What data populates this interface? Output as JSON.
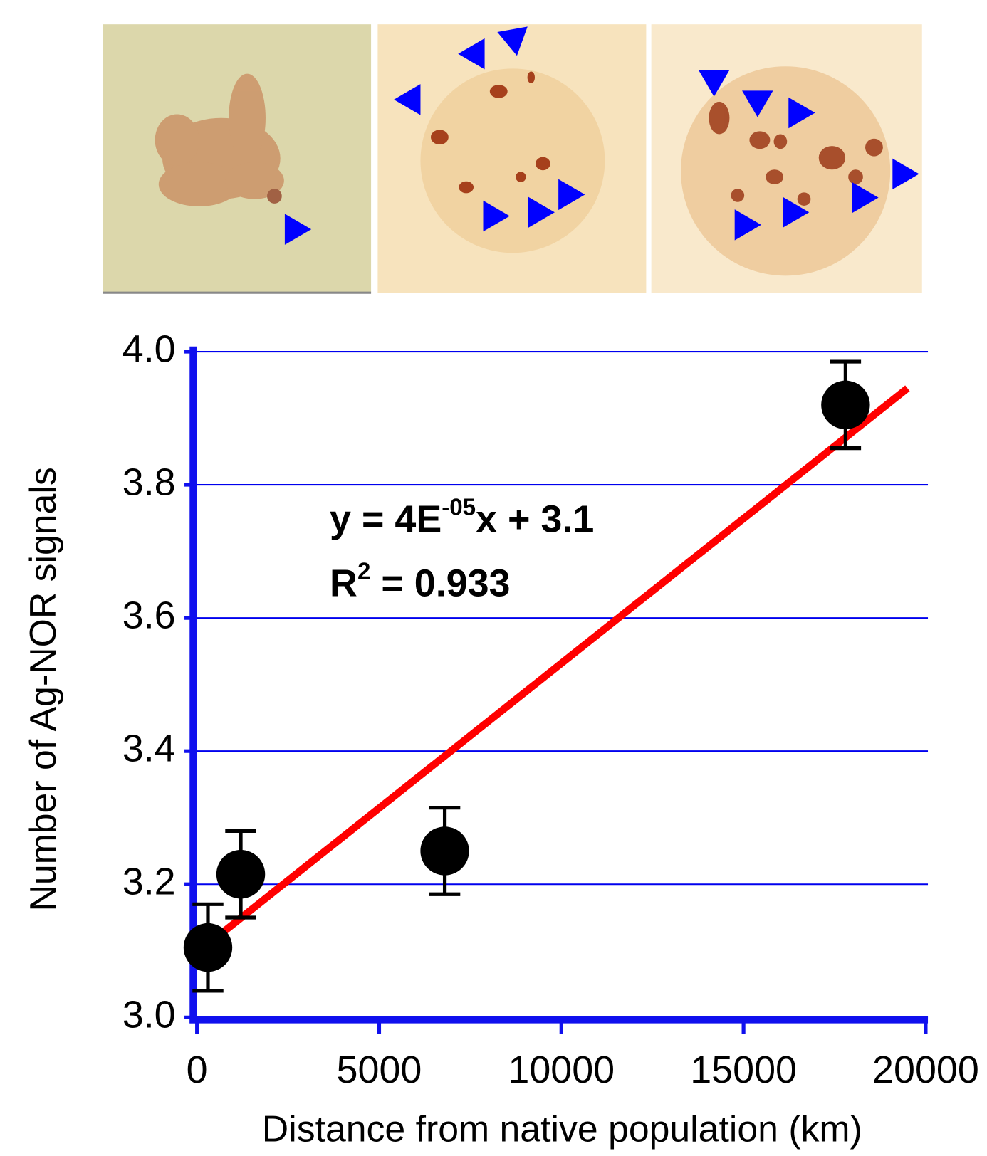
{
  "chart_data": {
    "type": "scatter",
    "x_label": "Distance from native population (km)",
    "y_label": "Number of Ag-NOR signals",
    "xlim": [
      0,
      20000
    ],
    "ylim": [
      3.0,
      4.0
    ],
    "xticks": [
      0,
      5000,
      10000,
      15000,
      20000
    ],
    "yticks": [
      {
        "value": 3.0,
        "label": "3.0"
      },
      3.2,
      3.4,
      3.6,
      3.8,
      {
        "value": 4.0,
        "label": "4.0"
      }
    ],
    "grid": true,
    "grid_color": "#0000ee",
    "axis_color": "#1010ee",
    "series": [
      {
        "x": [
          300,
          1200,
          6800,
          17800
        ],
        "values": [
          3.105,
          3.215,
          3.25,
          3.92
        ],
        "errors": [
          0.065,
          0.065,
          0.065,
          0.065
        ],
        "color": "#000000"
      }
    ],
    "trendline": {
      "x": [
        300,
        19500
      ],
      "values": [
        3.11,
        3.945
      ],
      "color": "#ff0000"
    },
    "annotation": {
      "equation": [
        "y = 4E",
        "-05",
        "x + 3.1"
      ],
      "r_squared": [
        "R",
        "2",
        " = 0.933"
      ]
    }
  }
}
